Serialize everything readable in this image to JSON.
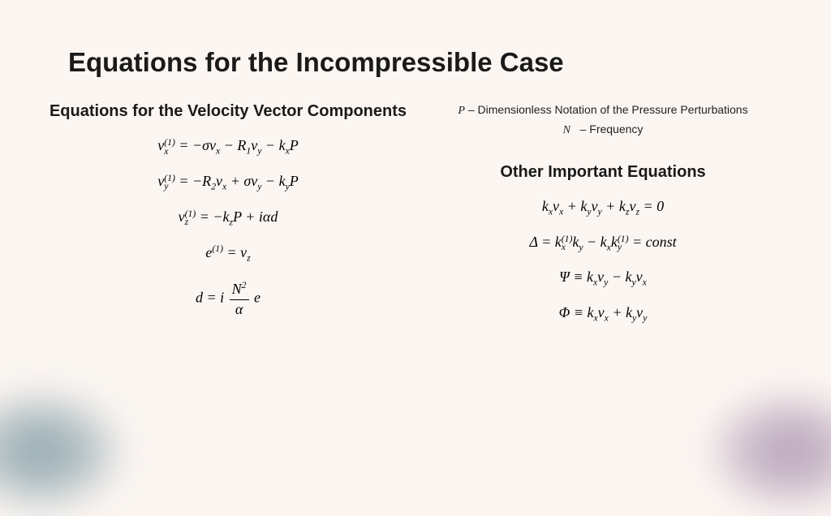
{
  "title": "Equations for the Incompressible Case",
  "left": {
    "heading": "Equations for the Velocity Vector Components",
    "equations": [
      "v_x^(1) = -σv_x - R_1 v_y - k_x P",
      "v_y^(1) = -R_2 v_x + σv_y - k_y P",
      "v_z^(1) = -k_z P + iαd",
      "e^(1) = v_z",
      "d = i (N^2 / α) e"
    ]
  },
  "right": {
    "def_p": "– Dimensionless Notation of the Pressure Perturbations",
    "def_n": "–  Frequency",
    "heading": "Other Important Equations",
    "equations": [
      "k_x v_x + k_y v_y + k_z v_z = 0",
      "Δ = k_x^(1) k_y - k_x k_y^(1) = const",
      "Ψ ≡ k_x v_y - k_y v_x",
      "Φ ≡ k_x v_x + k_y v_y"
    ]
  },
  "style": {
    "bg": "#fcf6f2",
    "text": "#1a1a1a",
    "title_size": 33,
    "subhead_size": 20,
    "eq_size": 18,
    "def_size": 14,
    "corner_bl_color": "#8ea5ad",
    "corner_br_color": "#b5a0b8"
  }
}
